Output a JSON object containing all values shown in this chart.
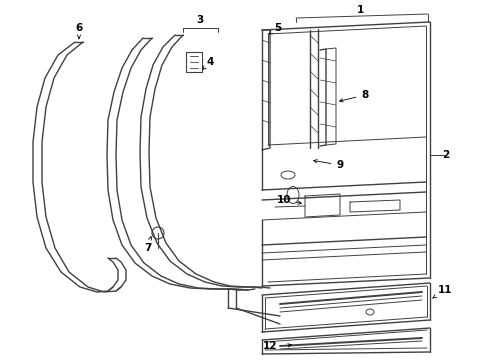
{
  "bg_color": "#ffffff",
  "line_color": "#404040",
  "label_color": "#000000",
  "fig_width": 4.9,
  "fig_height": 3.6,
  "dpi": 100
}
